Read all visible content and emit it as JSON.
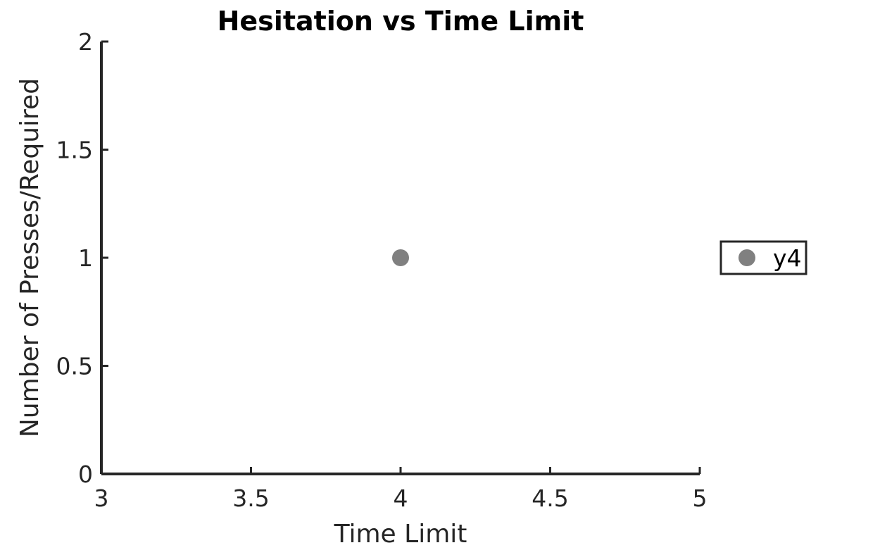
{
  "chart_data": {
    "type": "scatter",
    "title": "Hesitation vs Time Limit",
    "xlabel": "Time Limit",
    "ylabel": "Number of Presses/Required",
    "xlim": [
      3,
      5
    ],
    "ylim": [
      0,
      2
    ],
    "xticks": [
      3,
      3.5,
      4,
      4.5,
      5
    ],
    "xtick_labels": [
      "3",
      "3.5",
      "4",
      "4.5",
      "5"
    ],
    "yticks": [
      0,
      0.5,
      1,
      1.5,
      2
    ],
    "ytick_labels": [
      "0",
      "0.5",
      "1",
      "1.5",
      "2"
    ],
    "grid": false,
    "legend_position": "outside-right",
    "series": [
      {
        "name": "y4",
        "color": "#808080",
        "x": [
          4
        ],
        "y": [
          1
        ]
      }
    ]
  }
}
